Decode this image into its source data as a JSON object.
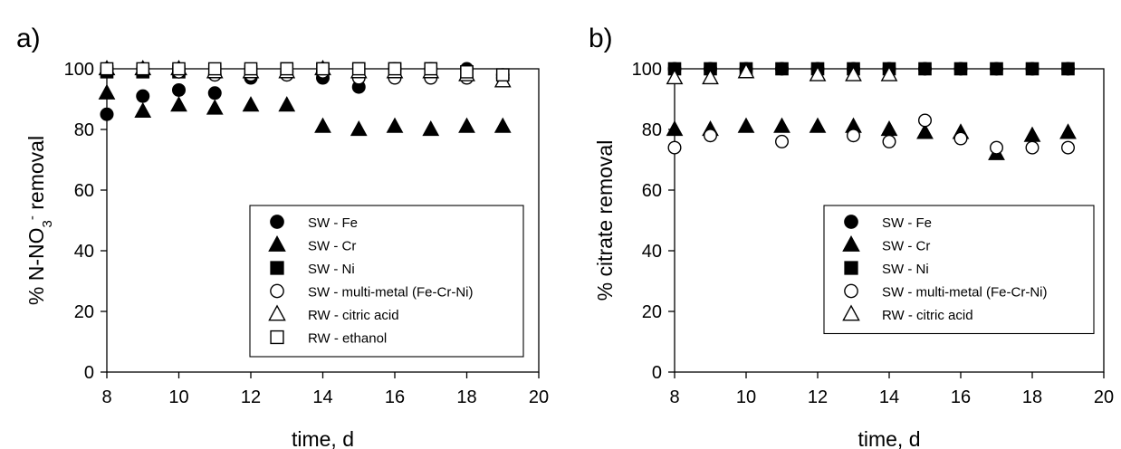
{
  "chart_data": [
    {
      "panel": "a)",
      "type": "scatter",
      "title": "",
      "xlabel": "time, d",
      "ylabel": {
        "prefix": "% N-NO",
        "sub": "3",
        "sup": "-",
        "suffix": " removal"
      },
      "xlim": [
        8,
        20
      ],
      "ylim": [
        0,
        100
      ],
      "xticks": [
        "8",
        "10",
        "12",
        "14",
        "16",
        "18",
        "20"
      ],
      "yticks": [
        "0",
        "20",
        "40",
        "60",
        "80",
        "100"
      ],
      "grid": false,
      "legend_position": "bottom-right",
      "series": [
        {
          "name": "SW - Fe",
          "marker": "circle",
          "filled": true,
          "x": [
            8,
            9,
            10,
            11,
            12,
            13,
            14,
            15,
            16,
            17,
            18,
            19
          ],
          "y": [
            85,
            91,
            93,
            92,
            97,
            99,
            97,
            94,
            100,
            100,
            100,
            98
          ]
        },
        {
          "name": "SW - Cr",
          "marker": "triangle",
          "filled": true,
          "x": [
            8,
            9,
            10,
            11,
            12,
            13,
            14,
            15,
            16,
            17,
            18,
            19
          ],
          "y": [
            92,
            86,
            88,
            87,
            88,
            88,
            81,
            80,
            81,
            80,
            81,
            81
          ]
        },
        {
          "name": "SW - Ni",
          "marker": "square",
          "filled": true,
          "x": [
            8,
            9,
            10,
            11,
            12,
            13,
            14,
            15,
            16,
            17,
            18,
            19
          ],
          "y": [
            99,
            99,
            99,
            99,
            99,
            100,
            100,
            100,
            100,
            100,
            99,
            98
          ]
        },
        {
          "name": "SW - multi-metal (Fe-Cr-Ni)",
          "marker": "circle",
          "filled": false,
          "x": [
            8,
            9,
            10,
            11,
            12,
            13,
            14,
            15,
            16,
            17,
            18,
            19
          ],
          "y": [
            100,
            100,
            99,
            98,
            98,
            98,
            99,
            97,
            97,
            97,
            97,
            97
          ]
        },
        {
          "name": "RW - citric acid",
          "marker": "triangle",
          "filled": false,
          "x": [
            8,
            9,
            10,
            11,
            12,
            13,
            14,
            15,
            16,
            17,
            18,
            19
          ],
          "y": [
            100,
            100,
            100,
            99,
            99,
            99,
            100,
            99,
            99,
            99,
            98,
            96
          ]
        },
        {
          "name": "RW - ethanol",
          "marker": "square",
          "filled": false,
          "x": [
            8,
            9,
            10,
            11,
            12,
            13,
            14,
            15,
            16,
            17,
            18,
            19
          ],
          "y": [
            100,
            100,
            100,
            100,
            100,
            100,
            100,
            100,
            100,
            100,
            99,
            98
          ]
        }
      ]
    },
    {
      "panel": "b)",
      "type": "scatter",
      "title": "",
      "xlabel": "time, d",
      "ylabel": {
        "prefix": "% citrate removal",
        "sub": "",
        "sup": "",
        "suffix": ""
      },
      "xlim": [
        8,
        20
      ],
      "ylim": [
        0,
        100
      ],
      "xticks": [
        "8",
        "10",
        "12",
        "14",
        "16",
        "18",
        "20"
      ],
      "yticks": [
        "0",
        "20",
        "40",
        "60",
        "80",
        "100"
      ],
      "grid": false,
      "legend_position": "bottom-right",
      "series": [
        {
          "name": "SW - Fe",
          "marker": "circle",
          "filled": true,
          "x": [
            8,
            9,
            10,
            11,
            12,
            13,
            14,
            15,
            16,
            17,
            18,
            19
          ],
          "y": [
            100,
            100,
            100,
            100,
            100,
            100,
            100,
            100,
            100,
            100,
            100,
            100
          ]
        },
        {
          "name": "SW - Cr",
          "marker": "triangle",
          "filled": true,
          "x": [
            8,
            9,
            10,
            11,
            12,
            13,
            14,
            15,
            16,
            17,
            18,
            19
          ],
          "y": [
            80,
            80,
            81,
            81,
            81,
            81,
            80,
            79,
            79,
            72,
            78,
            79
          ]
        },
        {
          "name": "SW - Ni",
          "marker": "square",
          "filled": true,
          "x": [
            8,
            9,
            10,
            11,
            12,
            13,
            14,
            15,
            16,
            17,
            18,
            19
          ],
          "y": [
            100,
            100,
            100,
            100,
            100,
            100,
            100,
            100,
            100,
            100,
            100,
            100
          ]
        },
        {
          "name": "SW - multi-metal (Fe-Cr-Ni)",
          "marker": "circle",
          "filled": false,
          "x": [
            8,
            9,
            11,
            13,
            14,
            15,
            16,
            17,
            18,
            19
          ],
          "y": [
            74,
            78,
            76,
            78,
            76,
            83,
            77,
            74,
            74,
            74
          ]
        },
        {
          "name": "RW - citric acid",
          "marker": "triangle",
          "filled": false,
          "x": [
            8,
            9,
            10,
            12,
            13,
            14
          ],
          "y": [
            97,
            97,
            99,
            98,
            98,
            98
          ]
        }
      ]
    }
  ]
}
